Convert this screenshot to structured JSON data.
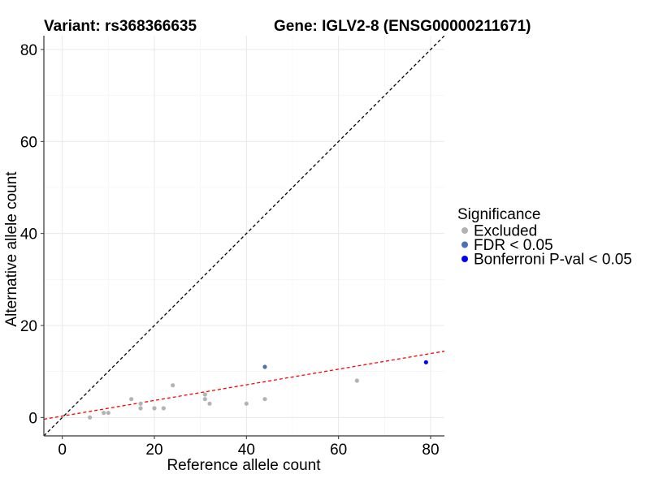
{
  "chart_data": {
    "type": "scatter",
    "title_left": "Variant: rs368366635",
    "title_right": "Gene: IGLV2-8 (ENSG00000211671)",
    "xlabel": "Reference allele count",
    "ylabel": "Alternative allele count",
    "xlim": [
      -4,
      83
    ],
    "ylim": [
      -4,
      83
    ],
    "xticks": [
      0,
      20,
      40,
      60,
      80
    ],
    "yticks": [
      0,
      20,
      40,
      60,
      80
    ],
    "grid": true,
    "legend": {
      "title": "Significance",
      "position": "right",
      "entries": [
        {
          "name": "Excluded",
          "color": "#b3b3b3"
        },
        {
          "name": "FDR < 0.05",
          "color": "#4a72b5"
        },
        {
          "name": "Bonferroni P-val < 0.05",
          "color": "#0000ff"
        }
      ]
    },
    "reference_lines": [
      {
        "name": "identity-line",
        "color": "#000000",
        "style": "dashed",
        "intercept": 0,
        "slope": 1
      },
      {
        "name": "regression-line",
        "color": "#ff0000",
        "style": "dashed",
        "intercept": 0.3,
        "slope": 0.17
      }
    ],
    "series": [
      {
        "name": "Excluded",
        "color": "#b3b3b3",
        "points": [
          [
            6,
            0
          ],
          [
            9,
            1
          ],
          [
            10,
            1
          ],
          [
            15,
            4
          ],
          [
            17,
            2
          ],
          [
            17,
            3
          ],
          [
            20,
            2
          ],
          [
            22,
            2
          ],
          [
            24,
            7
          ],
          [
            31,
            4
          ],
          [
            31,
            5
          ],
          [
            32,
            3
          ],
          [
            40,
            3
          ],
          [
            44,
            4
          ],
          [
            64,
            8
          ]
        ]
      },
      {
        "name": "FDR < 0.05",
        "color": "#4a72b5",
        "points": [
          [
            44,
            11
          ]
        ]
      },
      {
        "name": "Bonferroni P-val < 0.05",
        "color": "#0000ff",
        "points": [
          [
            79,
            12
          ]
        ]
      }
    ]
  }
}
